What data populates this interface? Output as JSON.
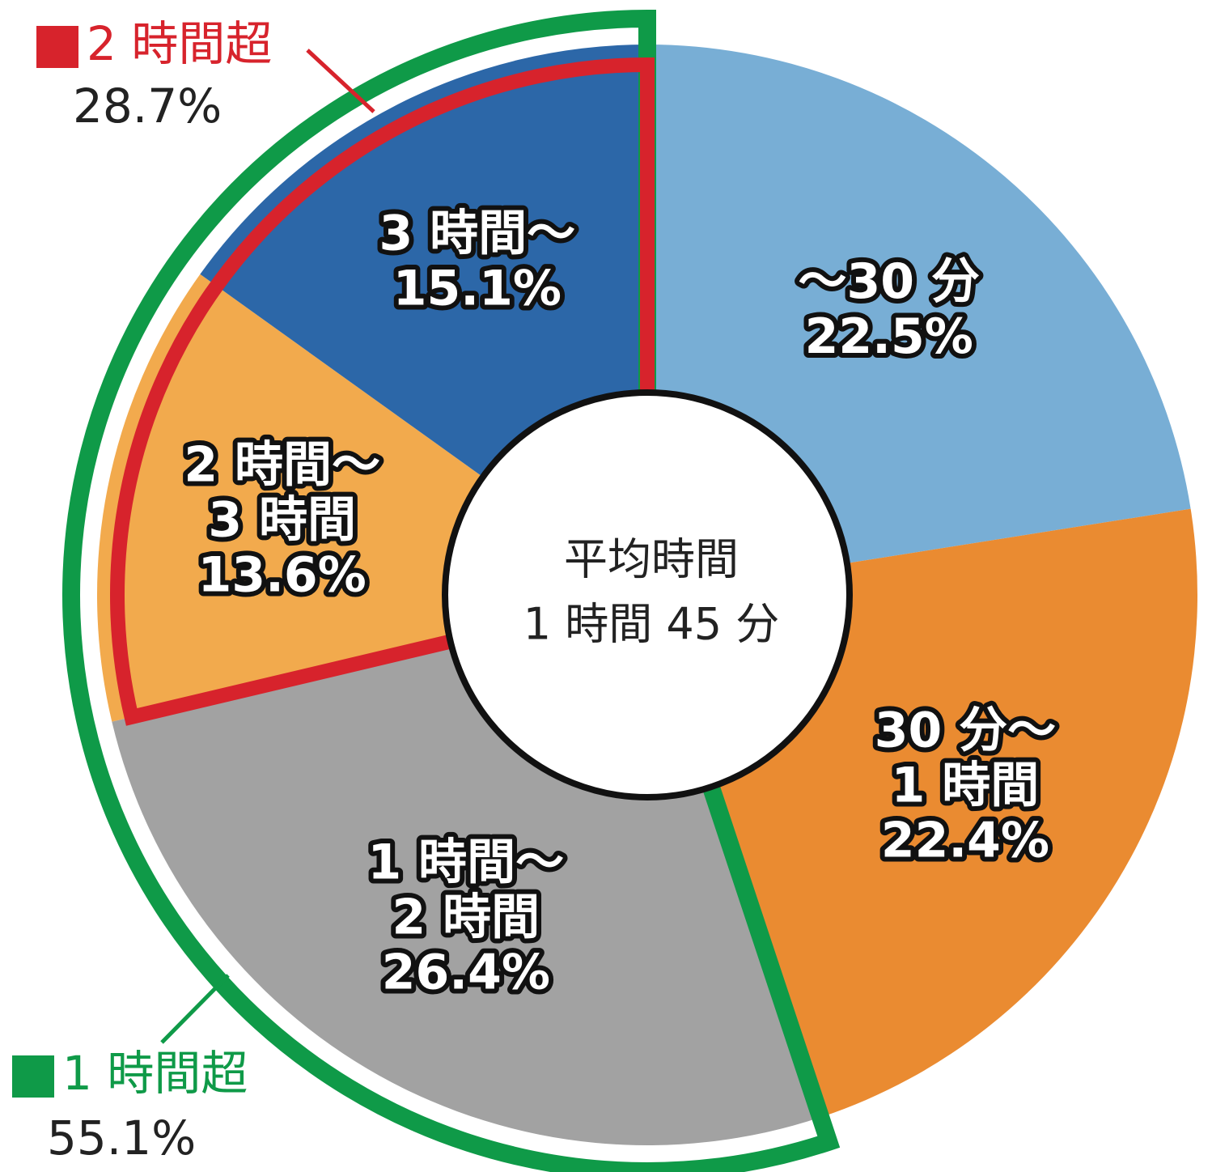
{
  "chart_data": {
    "type": "donut",
    "categories": [
      [
        "～30 分"
      ],
      [
        "30 分～",
        "1 時間"
      ],
      [
        "1 時間～",
        "2 時間"
      ],
      [
        "2 時間～",
        "3 時間"
      ],
      [
        "3 時間～"
      ]
    ],
    "values": [
      22.5,
      22.4,
      26.4,
      13.6,
      15.1
    ],
    "value_labels": [
      "22.5%",
      "22.4%",
      "26.4%",
      "13.6%",
      "15.1%"
    ],
    "colors": [
      "#78aed5",
      "#ea8b31",
      "#a2a2a2",
      "#f2aa4d",
      "#2c67a8"
    ],
    "center_text": [
      "平均時間",
      "1 時間 45 分"
    ],
    "groups": [
      {
        "name": "2 時間超",
        "value": 28.7,
        "value_label": "28.7%",
        "color": "#d7232c"
      },
      {
        "name": "1 時間超",
        "value": 55.1,
        "value_label": "55.1%",
        "color": "#0f9a48"
      }
    ]
  }
}
